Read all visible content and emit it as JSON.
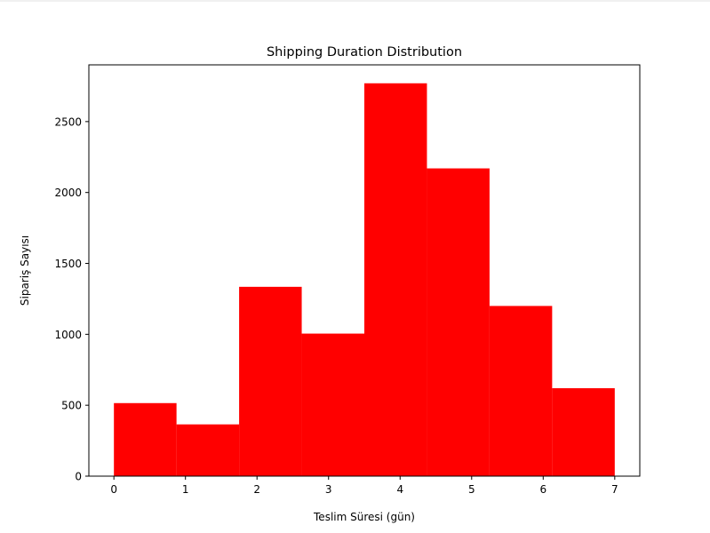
{
  "chart_data": {
    "type": "bar",
    "title": "Shipping Duration Distribution",
    "xlabel": "Teslim Süresi (gün)",
    "ylabel": "Sipariş Sayısı",
    "bin_edges": [
      0,
      0.875,
      1.75,
      2.625,
      3.5,
      4.375,
      5.25,
      6.125,
      7
    ],
    "values": [
      515,
      365,
      1335,
      1005,
      2770,
      2170,
      1200,
      620
    ],
    "xlim": [
      -0.35,
      7.35
    ],
    "ylim": [
      0,
      2900
    ],
    "xticks": [
      0,
      1,
      2,
      3,
      4,
      5,
      6,
      7
    ],
    "yticks": [
      0,
      500,
      1000,
      1500,
      2000,
      2500
    ],
    "bar_color": "#ff0000",
    "grid": false,
    "legend": "none"
  }
}
